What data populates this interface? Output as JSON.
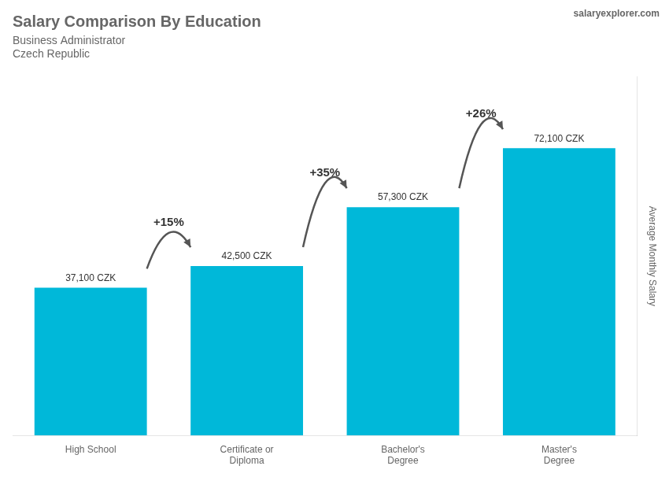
{
  "chart_data": {
    "type": "bar",
    "title": "Salary Comparison By Education",
    "subtitle": [
      "Business Administrator",
      "Czech Republic"
    ],
    "ylabel": "Average Monthly Salary",
    "categories": [
      "High School",
      "Certificate or\nDiploma",
      "Bachelor's\nDegree",
      "Master's\nDegree"
    ],
    "values": [
      37100,
      42500,
      57300,
      72100
    ],
    "value_labels": [
      "37,100 CZK",
      "42,500 CZK",
      "57,300 CZK",
      "72,100 CZK"
    ],
    "data_labels": true,
    "color": "#00b8d9",
    "ylim": [
      0,
      90000
    ],
    "grid": false,
    "tick_labels": "x",
    "annotations": [
      {
        "text": "+15%",
        "from": "High School",
        "to": "Certificate or\nDiploma"
      },
      {
        "text": "+35%",
        "from": "Certificate or\nDiploma",
        "to": "Bachelor's\nDegree"
      },
      {
        "text": "+26%",
        "from": "Bachelor's\nDegree",
        "to": "Master's\nDegree"
      },
      {
        "text": "salaryexplorer.com"
      }
    ]
  }
}
